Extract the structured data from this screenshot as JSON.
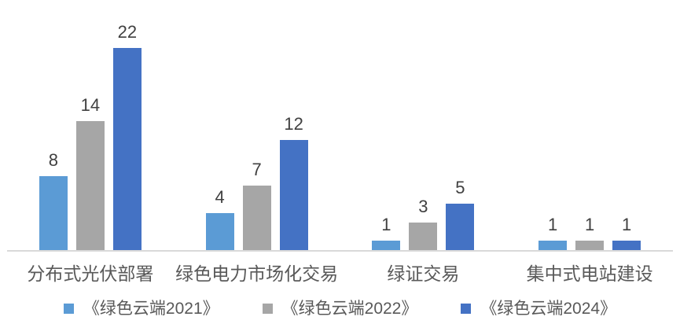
{
  "chart_data": {
    "type": "bar",
    "categories": [
      "分布式光伏部署",
      "绿色电力市场化交易",
      "绿证交易",
      "集中式电站建设"
    ],
    "series": [
      {
        "name": "《绿色云端2021》",
        "color": "#5B9BD5",
        "values": [
          8,
          4,
          1,
          1
        ]
      },
      {
        "name": "《绿色云端2022》",
        "color": "#A6A6A6",
        "values": [
          14,
          7,
          3,
          1
        ]
      },
      {
        "name": "《绿色云端2024》",
        "color": "#4472C4",
        "values": [
          22,
          12,
          5,
          1
        ]
      }
    ],
    "title": "",
    "xlabel": "",
    "ylabel": "",
    "ylim": [
      0,
      22
    ],
    "grid": false,
    "data_labels": true,
    "legend_position": "bottom"
  },
  "style": {
    "background": "#FFFFFF",
    "axis_line_color": "#D9D9D9",
    "value_label_color": "#404040",
    "category_label_color": "#595959",
    "legend_label_color": "#595959"
  }
}
